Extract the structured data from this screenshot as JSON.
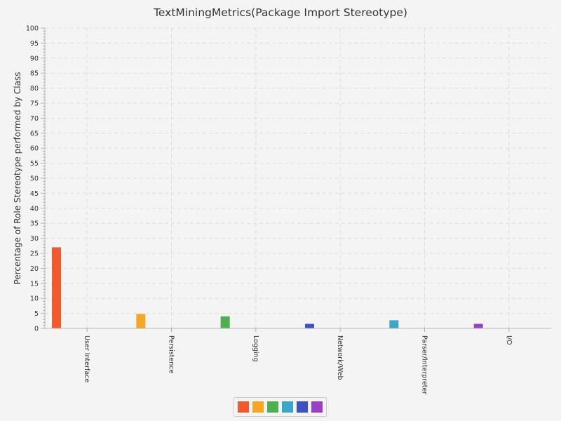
{
  "chart_data": {
    "type": "bar",
    "title": "TextMiningMetrics(Package Import Stereotype)",
    "xlabel": "",
    "ylabel": "Percentage of Role Stereotype performed by Class",
    "ylim": [
      0,
      100
    ],
    "y_tick_step": 5,
    "y_minor_step": 1,
    "grid": true,
    "legend_position": "bottom",
    "categories": [
      "User Interface",
      "Persistence",
      "Logging",
      "Network/Web",
      "Parser/Interpreter",
      "I/O"
    ],
    "values": [
      27,
      4.8,
      4,
      1.5,
      2.7,
      1.5
    ],
    "colors": [
      "#f05a2d",
      "#f5a623",
      "#4caf50",
      "#3f51c4",
      "#3aa6c8",
      "#9b3fc6"
    ],
    "legend": [
      {
        "color": "#f05a2d"
      },
      {
        "color": "#f5a623"
      },
      {
        "color": "#4caf50"
      },
      {
        "color": "#3aa6c8"
      },
      {
        "color": "#3f51c4"
      },
      {
        "color": "#9b3fc6"
      }
    ]
  }
}
